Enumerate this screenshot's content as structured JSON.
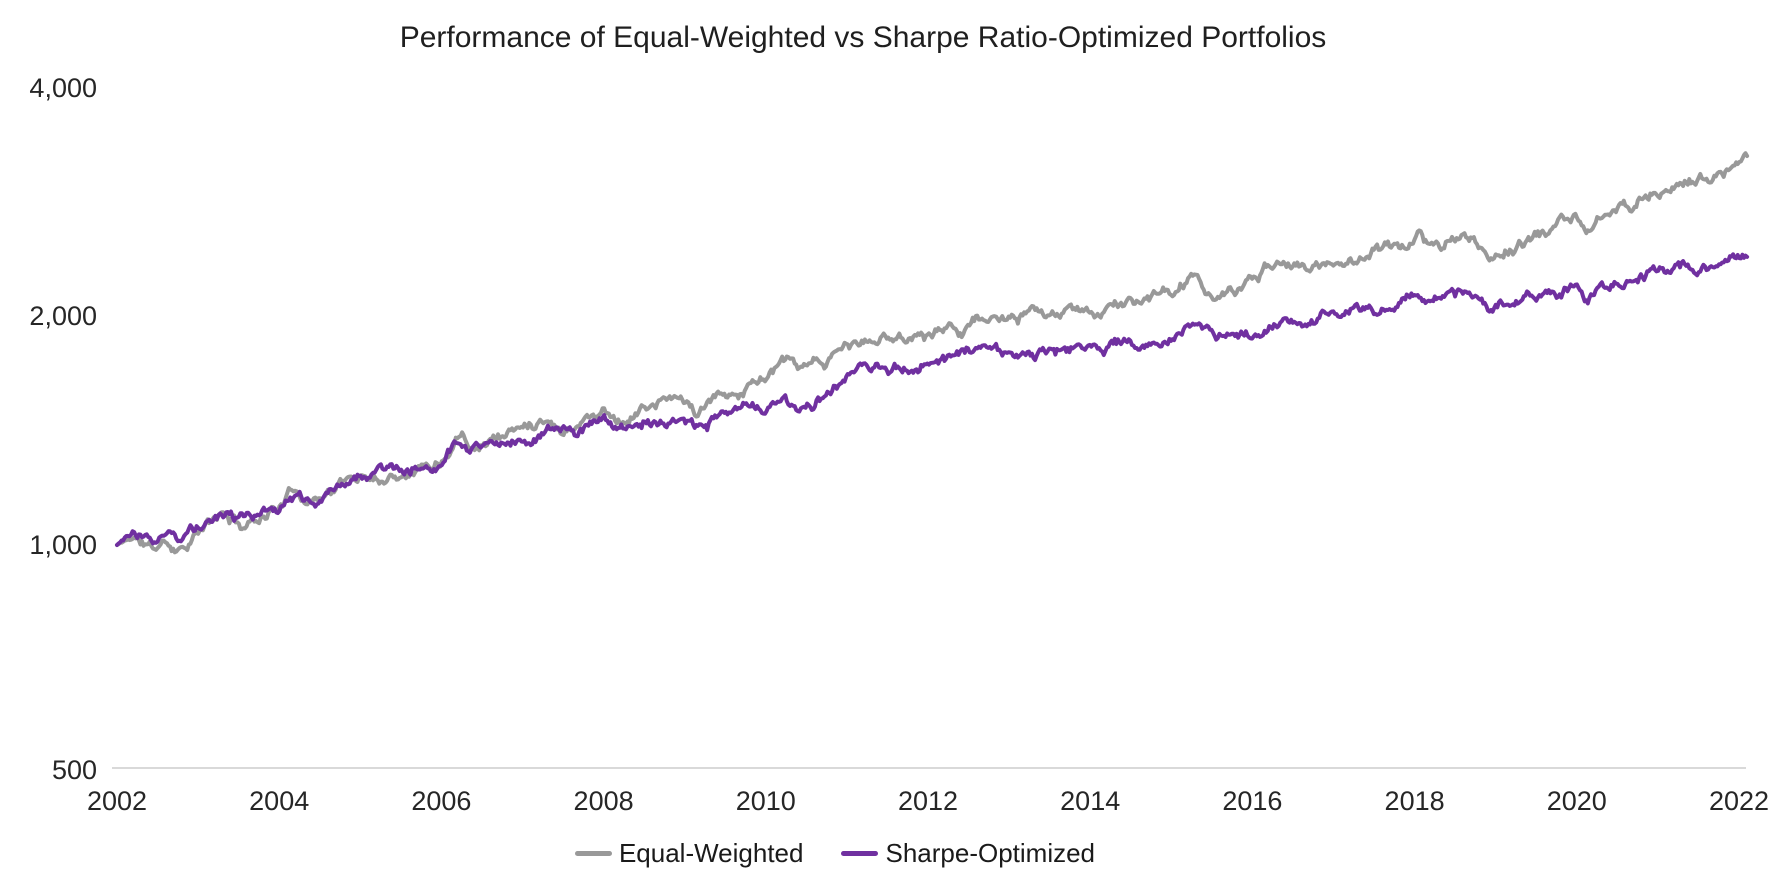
{
  "chart_data": {
    "type": "line",
    "title": "Performance of Equal-Weighted vs Sharpe Ratio-Optimized Portfolios",
    "x_axis": {
      "ticks": [
        "2002",
        "2004",
        "2006",
        "2008",
        "2010",
        "2012",
        "2014",
        "2016",
        "2018",
        "2020",
        "2022"
      ],
      "tick_values": [
        2002,
        2004,
        2006,
        2008,
        2010,
        2012,
        2014,
        2016,
        2018,
        2020,
        2022
      ],
      "range": [
        2002,
        2022.1
      ]
    },
    "y_axis": {
      "scale": "log2",
      "ticks": [
        {
          "label": "4,000",
          "value": 4000
        },
        {
          "label": "2,000",
          "value": 2000
        },
        {
          "label": "1,000",
          "value": 1000
        },
        {
          "label": "500",
          "value": 500
        }
      ],
      "range": [
        500,
        4500
      ]
    },
    "grid": false,
    "axis_line_color": "#d9d9d9",
    "start_value": 1000,
    "legend_position": "bottom-center",
    "series": [
      {
        "name": "Equal-Weighted",
        "color": "#999999",
        "points": [
          [
            2002,
            1000
          ],
          [
            2002.2,
            1025
          ],
          [
            2002.45,
            985
          ],
          [
            2002.6,
            1008
          ],
          [
            2002.75,
            992
          ],
          [
            2003,
            1040
          ],
          [
            2003.3,
            1095
          ],
          [
            2003.55,
            1058
          ],
          [
            2003.8,
            1100
          ],
          [
            2004,
            1130
          ],
          [
            2004.2,
            1185
          ],
          [
            2004.4,
            1150
          ],
          [
            2004.7,
            1195
          ],
          [
            2005,
            1240
          ],
          [
            2005.3,
            1228
          ],
          [
            2005.6,
            1268
          ],
          [
            2006,
            1300
          ],
          [
            2006.25,
            1440
          ],
          [
            2006.4,
            1365
          ],
          [
            2006.7,
            1400
          ],
          [
            2007,
            1430
          ],
          [
            2007.3,
            1490
          ],
          [
            2007.5,
            1420
          ],
          [
            2007.8,
            1480
          ],
          [
            2008,
            1510
          ],
          [
            2008.25,
            1465
          ],
          [
            2008.5,
            1520
          ],
          [
            2008.8,
            1555
          ],
          [
            2009,
            1560
          ],
          [
            2009.15,
            1480
          ],
          [
            2009.4,
            1560
          ],
          [
            2009.7,
            1600
          ],
          [
            2010,
            1680
          ],
          [
            2010.25,
            1745
          ],
          [
            2010.45,
            1690
          ],
          [
            2010.7,
            1730
          ],
          [
            2011,
            1830
          ],
          [
            2011.3,
            1855
          ],
          [
            2011.6,
            1880
          ],
          [
            2012,
            1910
          ],
          [
            2012.4,
            1950
          ],
          [
            2012.7,
            2005
          ],
          [
            2012.9,
            1965
          ],
          [
            2013.2,
            2000
          ],
          [
            2013.6,
            2020
          ],
          [
            2014,
            2030
          ],
          [
            2014.5,
            2090
          ],
          [
            2015,
            2150
          ],
          [
            2015.3,
            2255
          ],
          [
            2015.6,
            2110
          ],
          [
            2016,
            2240
          ],
          [
            2016.4,
            2415
          ],
          [
            2016.7,
            2310
          ],
          [
            2017,
            2360
          ],
          [
            2017.5,
            2450
          ],
          [
            2018,
            2530
          ],
          [
            2018.08,
            2600
          ],
          [
            2018.2,
            2460
          ],
          [
            2018.6,
            2570
          ],
          [
            2018.9,
            2400
          ],
          [
            2019.2,
            2470
          ],
          [
            2019.6,
            2580
          ],
          [
            2020,
            2730
          ],
          [
            2020.13,
            2570
          ],
          [
            2020.3,
            2700
          ],
          [
            2020.6,
            2800
          ],
          [
            2021,
            2950
          ],
          [
            2021.4,
            3030
          ],
          [
            2021.7,
            3090
          ],
          [
            2022.1,
            3200
          ]
        ]
      },
      {
        "name": "Sharpe-Optimized",
        "color": "#7030a0",
        "points": [
          [
            2002,
            1000
          ],
          [
            2002.2,
            1045
          ],
          [
            2002.45,
            1022
          ],
          [
            2002.6,
            1050
          ],
          [
            2002.75,
            1035
          ],
          [
            2003,
            1063
          ],
          [
            2003.3,
            1110
          ],
          [
            2003.55,
            1075
          ],
          [
            2003.8,
            1100
          ],
          [
            2004,
            1120
          ],
          [
            2004.2,
            1165
          ],
          [
            2004.4,
            1140
          ],
          [
            2004.7,
            1180
          ],
          [
            2005,
            1220
          ],
          [
            2005.3,
            1235
          ],
          [
            2005.6,
            1260
          ],
          [
            2006,
            1290
          ],
          [
            2006.25,
            1380
          ],
          [
            2006.4,
            1345
          ],
          [
            2006.7,
            1352
          ],
          [
            2007,
            1365
          ],
          [
            2007.3,
            1420
          ],
          [
            2007.5,
            1388
          ],
          [
            2007.8,
            1420
          ],
          [
            2008,
            1440
          ],
          [
            2008.25,
            1415
          ],
          [
            2008.5,
            1455
          ],
          [
            2008.8,
            1465
          ],
          [
            2009,
            1470
          ],
          [
            2009.15,
            1430
          ],
          [
            2009.4,
            1465
          ],
          [
            2009.7,
            1480
          ],
          [
            2010,
            1510
          ],
          [
            2010.25,
            1545
          ],
          [
            2010.45,
            1532
          ],
          [
            2010.7,
            1565
          ],
          [
            2011,
            1660
          ],
          [
            2011.3,
            1680
          ],
          [
            2011.6,
            1700
          ],
          [
            2012,
            1730
          ],
          [
            2012.4,
            1770
          ],
          [
            2012.7,
            1815
          ],
          [
            2012.9,
            1788
          ],
          [
            2013.2,
            1800
          ],
          [
            2013.6,
            1812
          ],
          [
            2014,
            1822
          ],
          [
            2014.5,
            1860
          ],
          [
            2015,
            1890
          ],
          [
            2015.3,
            1945
          ],
          [
            2015.6,
            1888
          ],
          [
            2016,
            1912
          ],
          [
            2016.4,
            1975
          ],
          [
            2016.7,
            1952
          ],
          [
            2017,
            2010
          ],
          [
            2017.5,
            2060
          ],
          [
            2018,
            2130
          ],
          [
            2018.08,
            2155
          ],
          [
            2018.2,
            2085
          ],
          [
            2018.6,
            2135
          ],
          [
            2018.9,
            2050
          ],
          [
            2019.2,
            2090
          ],
          [
            2019.6,
            2150
          ],
          [
            2020,
            2215
          ],
          [
            2020.13,
            2120
          ],
          [
            2020.3,
            2200
          ],
          [
            2020.6,
            2260
          ],
          [
            2021,
            2300
          ],
          [
            2021.4,
            2340
          ],
          [
            2021.7,
            2380
          ],
          [
            2022.1,
            2430
          ]
        ]
      }
    ]
  }
}
